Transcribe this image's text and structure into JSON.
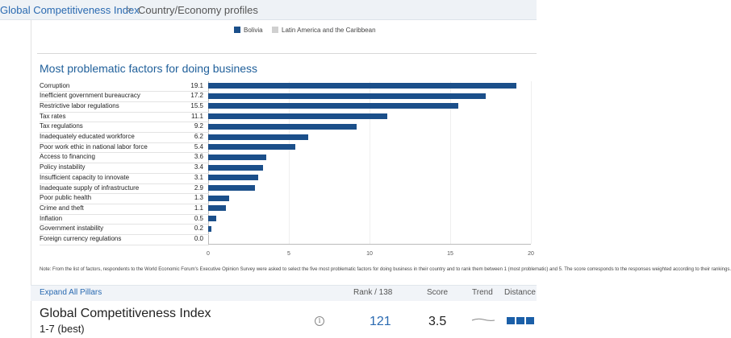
{
  "breadcrumb": {
    "root": "Global Competitiveness Index",
    "separator": ">",
    "current": "Country/Economy profiles"
  },
  "legend": {
    "series_a": "Bolivia",
    "series_b": "Latin America and the Caribbean",
    "series_a_color": "#1b4f8a",
    "series_b_color": "#d0d0d0"
  },
  "chart_data": {
    "type": "bar",
    "orientation": "horizontal",
    "title": "Most problematic factors for doing business",
    "categories": [
      "Corruption",
      "Inefficient government bureaucracy",
      "Restrictive labor regulations",
      "Tax rates",
      "Tax regulations",
      "Inadequately educated workforce",
      "Poor work ethic in national labor force",
      "Access to financing",
      "Policy instability",
      "Insufficient capacity to innovate",
      "Inadequate supply of infrastructure",
      "Poor public health",
      "Crime and theft",
      "Inflation",
      "Government instability",
      "Foreign currency regulations"
    ],
    "value_labels": [
      "19.1",
      "17.2",
      "15.5",
      "11.1",
      "9.2",
      "6.2",
      "5.4",
      "3.6",
      "3.4",
      "3.1",
      "2.9",
      "1.3",
      "1.1",
      "0.5",
      "0.2",
      "0.0"
    ],
    "series": [
      {
        "name": "Bolivia",
        "values": [
          19.1,
          17.2,
          15.5,
          11.1,
          9.2,
          6.2,
          5.4,
          3.6,
          3.4,
          3.1,
          2.9,
          1.3,
          1.1,
          0.5,
          0.2,
          0.0
        ]
      }
    ],
    "xlim": [
      0,
      20
    ],
    "xticks": [
      "0",
      "5",
      "10",
      "15",
      "20"
    ],
    "grid": true,
    "legend_position": "top"
  },
  "note": "Note: From the list of factors, respondents to the World Economic Forum's Executive Opinion Survey were asked to select the five most problematic factors for doing business in their country and to rank them between 1 (most problematic) and 5. The score corresponds to the responses weighted according to their rankings.",
  "pillars": {
    "expand_label": "Expand All Pillars",
    "rank_header": "Rank / 138",
    "score_header": "Score",
    "trend_header": "Trend",
    "distance_header": "Distance"
  },
  "gci": {
    "title": "Global Competitiveness Index",
    "scale": "1-7 (best)",
    "info_icon": "i",
    "rank": "121",
    "score": "3.5"
  }
}
